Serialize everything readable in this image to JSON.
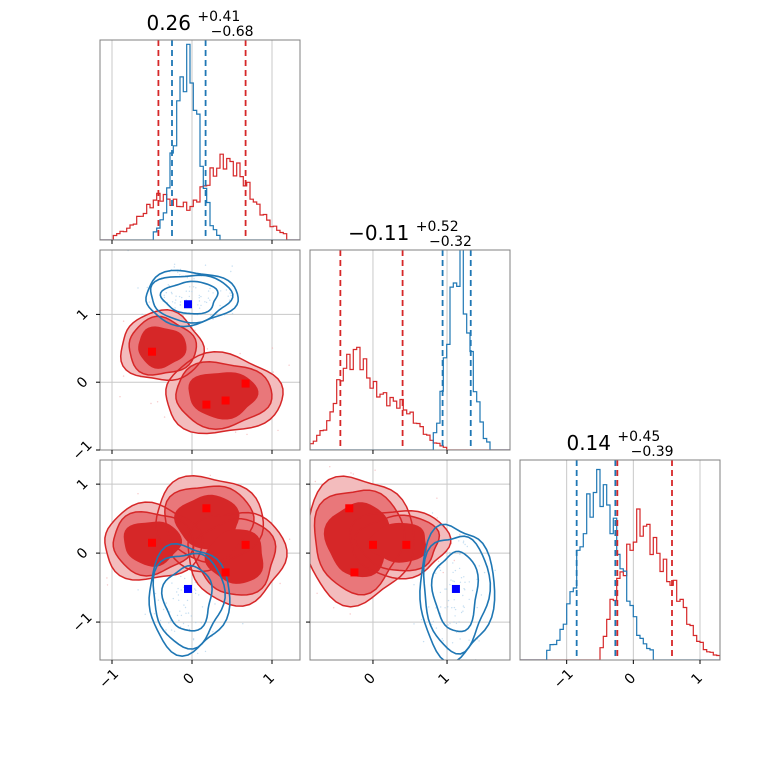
{
  "figure": {
    "type": "corner_plot"
  },
  "colors": {
    "red": "#d62728",
    "red_mid": "#e9777a",
    "red_light": "#f3bcbd",
    "blue": "#1f77b4",
    "blue_square": "#0000ff",
    "red_square": "#ff0000",
    "grid": "#c8c8c8"
  },
  "titles": [
    {
      "val": "0.26",
      "up": "+0.41",
      "down": "−0.68"
    },
    {
      "val": "−0.11",
      "up": "+0.52",
      "down": "−0.32"
    },
    {
      "val": "0.14",
      "up": "+0.45",
      "down": "−0.39"
    }
  ],
  "chart_data": {
    "type": "corner",
    "parameters": 3,
    "series": [
      {
        "color": "red"
      },
      {
        "color": "blue"
      }
    ],
    "diagonal": [
      {
        "xlim": [
          -1.15,
          1.35
        ],
        "quantiles": {
          "red": [
            -0.42,
            0.67
          ],
          "blue": [
            -0.25,
            0.17
          ]
        },
        "hist_red": {
          "x": [
            -1.0,
            -0.8,
            -0.6,
            -0.4,
            -0.2,
            0.0,
            0.2,
            0.4,
            0.6,
            0.8,
            1.0,
            1.2
          ],
          "y": [
            0.02,
            0.06,
            0.15,
            0.25,
            0.2,
            0.18,
            0.33,
            0.45,
            0.38,
            0.2,
            0.08,
            0.02
          ]
        },
        "hist_blue": {
          "x": [
            -0.5,
            -0.35,
            -0.25,
            -0.15,
            -0.05,
            0.05,
            0.15,
            0.25,
            0.35
          ],
          "y": [
            0.02,
            0.12,
            0.45,
            0.82,
            1.0,
            0.75,
            0.32,
            0.08,
            0.01
          ]
        }
      },
      {
        "xlim": [
          -0.85,
          1.85
        ],
        "quantiles": {
          "red": [
            -0.44,
            0.4
          ],
          "blue": [
            0.94,
            1.32
          ]
        },
        "hist_red": {
          "x": [
            -0.85,
            -0.6,
            -0.4,
            -0.2,
            0.0,
            0.2,
            0.4,
            0.6,
            0.8,
            1.0
          ],
          "y": [
            0.02,
            0.15,
            0.45,
            0.55,
            0.35,
            0.28,
            0.25,
            0.15,
            0.05,
            0.01
          ]
        },
        "hist_blue": {
          "x": [
            0.8,
            0.9,
            1.0,
            1.1,
            1.2,
            1.3,
            1.4,
            1.5,
            1.6
          ],
          "y": [
            0.02,
            0.2,
            0.6,
            0.95,
            1.0,
            0.6,
            0.3,
            0.08,
            0.01
          ]
        }
      },
      {
        "xlim": [
          -1.7,
          1.3
        ],
        "quantiles": {
          "red": [
            -0.24,
            0.58
          ],
          "blue": [
            -0.85,
            -0.27
          ]
        },
        "hist_red": {
          "x": [
            -0.5,
            -0.3,
            -0.1,
            0.1,
            0.3,
            0.5,
            0.7,
            0.9,
            1.1,
            1.3
          ],
          "y": [
            0.02,
            0.35,
            0.55,
            0.78,
            0.65,
            0.48,
            0.35,
            0.15,
            0.05,
            0.02
          ]
        },
        "hist_blue": {
          "x": [
            -1.3,
            -1.1,
            -0.9,
            -0.7,
            -0.5,
            -0.3,
            -0.1,
            0.1,
            0.3
          ],
          "y": [
            0.05,
            0.12,
            0.4,
            0.8,
            1.0,
            0.75,
            0.4,
            0.12,
            0.04
          ]
        }
      }
    ],
    "pairs": [
      {
        "row": 1,
        "col": 0,
        "xlim": [
          -1.15,
          1.35
        ],
        "ylim": [
          -1.0,
          1.95
        ],
        "red_modes": [
          {
            "x": -0.5,
            "y": 0.45
          },
          {
            "x": 0.18,
            "y": -0.33
          },
          {
            "x": 0.42,
            "y": -0.27
          },
          {
            "x": 0.67,
            "y": -0.02
          }
        ],
        "blue_modes": [
          {
            "x": -0.05,
            "y": 1.15
          }
        ],
        "red_blobs": [
          {
            "cx": -0.38,
            "cy": 0.52,
            "rx": 0.42,
            "ry": 0.42
          },
          {
            "cx": 0.38,
            "cy": -0.18,
            "rx": 0.6,
            "ry": 0.48
          }
        ],
        "blue_blobs": [
          {
            "cx": -0.02,
            "cy": 1.25,
            "rx": 0.48,
            "ry": 0.33
          }
        ]
      },
      {
        "row": 2,
        "col": 0,
        "xlim": [
          -1.15,
          1.35
        ],
        "ylim": [
          -1.55,
          1.35
        ],
        "red_modes": [
          {
            "x": -0.5,
            "y": 0.15
          },
          {
            "x": 0.18,
            "y": 0.65
          },
          {
            "x": 0.67,
            "y": 0.12
          },
          {
            "x": 0.42,
            "y": -0.28
          }
        ],
        "blue_modes": [
          {
            "x": -0.05,
            "y": -0.52
          }
        ],
        "red_blobs": [
          {
            "cx": -0.5,
            "cy": 0.15,
            "rx": 0.5,
            "ry": 0.45
          },
          {
            "cx": 0.2,
            "cy": 0.45,
            "rx": 0.55,
            "ry": 0.55
          },
          {
            "cx": 0.55,
            "cy": -0.05,
            "rx": 0.5,
            "ry": 0.55
          }
        ],
        "blue_blobs": [
          {
            "cx": -0.05,
            "cy": -0.65,
            "rx": 0.42,
            "ry": 0.65
          }
        ]
      },
      {
        "row": 2,
        "col": 1,
        "xlim": [
          -0.85,
          1.85
        ],
        "ylim": [
          -1.55,
          1.35
        ],
        "red_modes": [
          {
            "x": -0.32,
            "y": 0.65
          },
          {
            "x": 0.0,
            "y": 0.12
          },
          {
            "x": 0.45,
            "y": 0.12
          },
          {
            "x": -0.25,
            "y": -0.28
          }
        ],
        "blue_modes": [
          {
            "x": 1.12,
            "y": -0.52
          }
        ],
        "red_blobs": [
          {
            "cx": -0.2,
            "cy": 0.2,
            "rx": 0.6,
            "ry": 0.75
          },
          {
            "cx": 0.35,
            "cy": 0.15,
            "rx": 0.55,
            "ry": 0.4
          }
        ],
        "blue_blobs": [
          {
            "cx": 1.12,
            "cy": -0.55,
            "rx": 0.42,
            "ry": 0.8
          }
        ]
      }
    ],
    "ticks": {
      "p0": [
        "−1",
        "0",
        "1"
      ],
      "p0_values": [
        -1,
        0,
        1
      ],
      "p1": [
        "−1",
        "0",
        "1"
      ],
      "p1_values": [
        -1,
        0,
        1
      ],
      "p2": [
        "−1",
        "0",
        "1"
      ],
      "p2_values": [
        -1,
        0,
        1
      ]
    }
  }
}
